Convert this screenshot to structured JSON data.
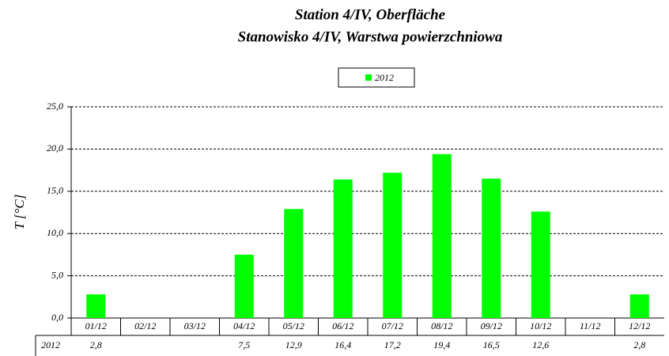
{
  "chart_data": {
    "type": "bar",
    "title": "Station 4/IV, Oberfläche",
    "subtitle": "Stanowisko 4/IV, Warstwa powierzchniowa",
    "y_label": "T [°C]",
    "categories": [
      "01/12",
      "02/12",
      "03/12",
      "04/12",
      "05/12",
      "06/12",
      "07/12",
      "08/12",
      "09/12",
      "10/12",
      "11/12",
      "12/12"
    ],
    "series": [
      {
        "name": "2012",
        "color": "#00ff00",
        "values": [
          2.8,
          null,
          null,
          7.5,
          12.9,
          16.4,
          17.2,
          19.4,
          16.5,
          12.6,
          null,
          2.8
        ],
        "value_labels": [
          "2,8",
          null,
          null,
          "7,5",
          "12,9",
          "16,4",
          "17,2",
          "19,4",
          "16,5",
          "12,6",
          null,
          "2,8"
        ]
      }
    ],
    "ylim": [
      0,
      25
    ],
    "yticks": [
      {
        "value": 0,
        "label": "0,0"
      },
      {
        "value": 5,
        "label": "5,0"
      },
      {
        "value": 10,
        "label": "10,0"
      },
      {
        "value": 15,
        "label": "15,0"
      },
      {
        "value": 20,
        "label": "20,0"
      },
      {
        "value": 25,
        "label": "25,0"
      }
    ],
    "grid": true
  }
}
